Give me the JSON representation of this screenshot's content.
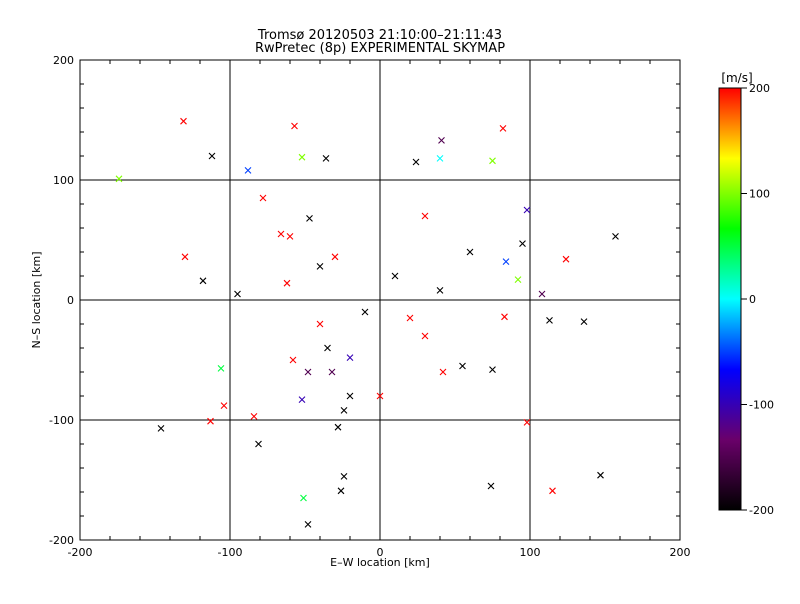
{
  "chart_data": {
    "type": "scatter",
    "title": "Tromsø 20120503 21:10:00–21:11:43",
    "subtitle": "RwPretec (8p) EXPERIMENTAL SKYMAP",
    "xlabel": "E–W location [km]",
    "ylabel": "N–S location [km]",
    "xlim": [
      -200,
      200
    ],
    "ylim": [
      -200,
      200
    ],
    "xticks": [
      -200,
      -100,
      0,
      100,
      200
    ],
    "yticks": [
      -200,
      -100,
      0,
      100,
      200
    ],
    "grid": true,
    "colorbar": {
      "label": "[m/s]",
      "min": -200,
      "max": 200,
      "ticks": [
        200,
        100,
        0,
        -100,
        -200
      ],
      "colormap": [
        "#000000",
        "#6a006a",
        "#0000ff",
        "#00ffff",
        "#00ff00",
        "#ffff00",
        "#ff0000"
      ]
    },
    "series": [
      {
        "marker": "x",
        "points": [
          {
            "x": -131,
            "y": 149,
            "v": 200
          },
          {
            "x": -112,
            "y": 120,
            "v": -200
          },
          {
            "x": -88,
            "y": 108,
            "v": -50
          },
          {
            "x": -57,
            "y": 145,
            "v": 200
          },
          {
            "x": -52,
            "y": 119,
            "v": 100
          },
          {
            "x": -36,
            "y": 118,
            "v": -200
          },
          {
            "x": 82,
            "y": 143,
            "v": 200
          },
          {
            "x": 75,
            "y": 116,
            "v": 100
          },
          {
            "x": 41,
            "y": 133,
            "v": -150
          },
          {
            "x": 24,
            "y": 115,
            "v": -200
          },
          {
            "x": 40,
            "y": 118,
            "v": 0
          },
          {
            "x": 98,
            "y": 75,
            "v": -100
          },
          {
            "x": 157,
            "y": 53,
            "v": -200
          },
          {
            "x": 95,
            "y": 47,
            "v": -200
          },
          {
            "x": 124,
            "y": 34,
            "v": 200
          },
          {
            "x": 92,
            "y": 17,
            "v": 100
          },
          {
            "x": 108,
            "y": 5,
            "v": -150
          },
          {
            "x": 84,
            "y": 32,
            "v": -50
          },
          {
            "x": -174,
            "y": 101,
            "v": 100
          },
          {
            "x": -130,
            "y": 36,
            "v": 200
          },
          {
            "x": -118,
            "y": 16,
            "v": -200
          },
          {
            "x": -95,
            "y": 5,
            "v": -200
          },
          {
            "x": -106,
            "y": -57,
            "v": 50
          },
          {
            "x": -104,
            "y": -88,
            "v": 200
          },
          {
            "x": -113,
            "y": -101,
            "v": 200
          },
          {
            "x": -81,
            "y": -120,
            "v": -200
          },
          {
            "x": -146,
            "y": -107,
            "v": -200
          },
          {
            "x": -84,
            "y": -97,
            "v": 200
          },
          {
            "x": -52,
            "y": -83,
            "v": -100
          },
          {
            "x": -24,
            "y": -92,
            "v": -200
          },
          {
            "x": -28,
            "y": -106,
            "v": -200
          },
          {
            "x": -24,
            "y": -147,
            "v": -200
          },
          {
            "x": -26,
            "y": -159,
            "v": -200
          },
          {
            "x": -51,
            "y": -165,
            "v": 50
          },
          {
            "x": -48,
            "y": -187,
            "v": -200
          },
          {
            "x": 74,
            "y": -155,
            "v": -200
          },
          {
            "x": 115,
            "y": -159,
            "v": 200
          },
          {
            "x": 147,
            "y": -146,
            "v": -200
          },
          {
            "x": 98,
            "y": -102,
            "v": 200
          },
          {
            "x": 75,
            "y": -58,
            "v": -200
          },
          {
            "x": 113,
            "y": -17,
            "v": -200
          },
          {
            "x": 136,
            "y": -18,
            "v": -200
          },
          {
            "x": 83,
            "y": -14,
            "v": 200
          },
          {
            "x": 40,
            "y": 8,
            "v": -200
          },
          {
            "x": -40,
            "y": 28,
            "v": -200
          },
          {
            "x": -30,
            "y": 36,
            "v": 200
          },
          {
            "x": -62,
            "y": 14,
            "v": 200
          },
          {
            "x": -58,
            "y": -50,
            "v": 200
          },
          {
            "x": -35,
            "y": -40,
            "v": -200
          },
          {
            "x": -20,
            "y": -48,
            "v": -100
          },
          {
            "x": -40,
            "y": -20,
            "v": 200
          },
          {
            "x": 20,
            "y": -15,
            "v": 200
          },
          {
            "x": 30,
            "y": -30,
            "v": 200
          },
          {
            "x": 10,
            "y": 20,
            "v": -200
          },
          {
            "x": -10,
            "y": -10,
            "v": -200
          },
          {
            "x": -47,
            "y": 68,
            "v": -200
          },
          {
            "x": -60,
            "y": 53,
            "v": 200
          },
          {
            "x": -66,
            "y": 55,
            "v": 200
          },
          {
            "x": -78,
            "y": 85,
            "v": 200
          },
          {
            "x": 30,
            "y": 70,
            "v": 200
          },
          {
            "x": 60,
            "y": 40,
            "v": -200
          },
          {
            "x": -48,
            "y": -60,
            "v": -150
          },
          {
            "x": -32,
            "y": -60,
            "v": -150
          },
          {
            "x": -20,
            "y": -80,
            "v": -200
          },
          {
            "x": 0,
            "y": -80,
            "v": 200
          },
          {
            "x": 42,
            "y": -60,
            "v": 200
          },
          {
            "x": 55,
            "y": -55,
            "v": -200
          }
        ]
      }
    ]
  }
}
